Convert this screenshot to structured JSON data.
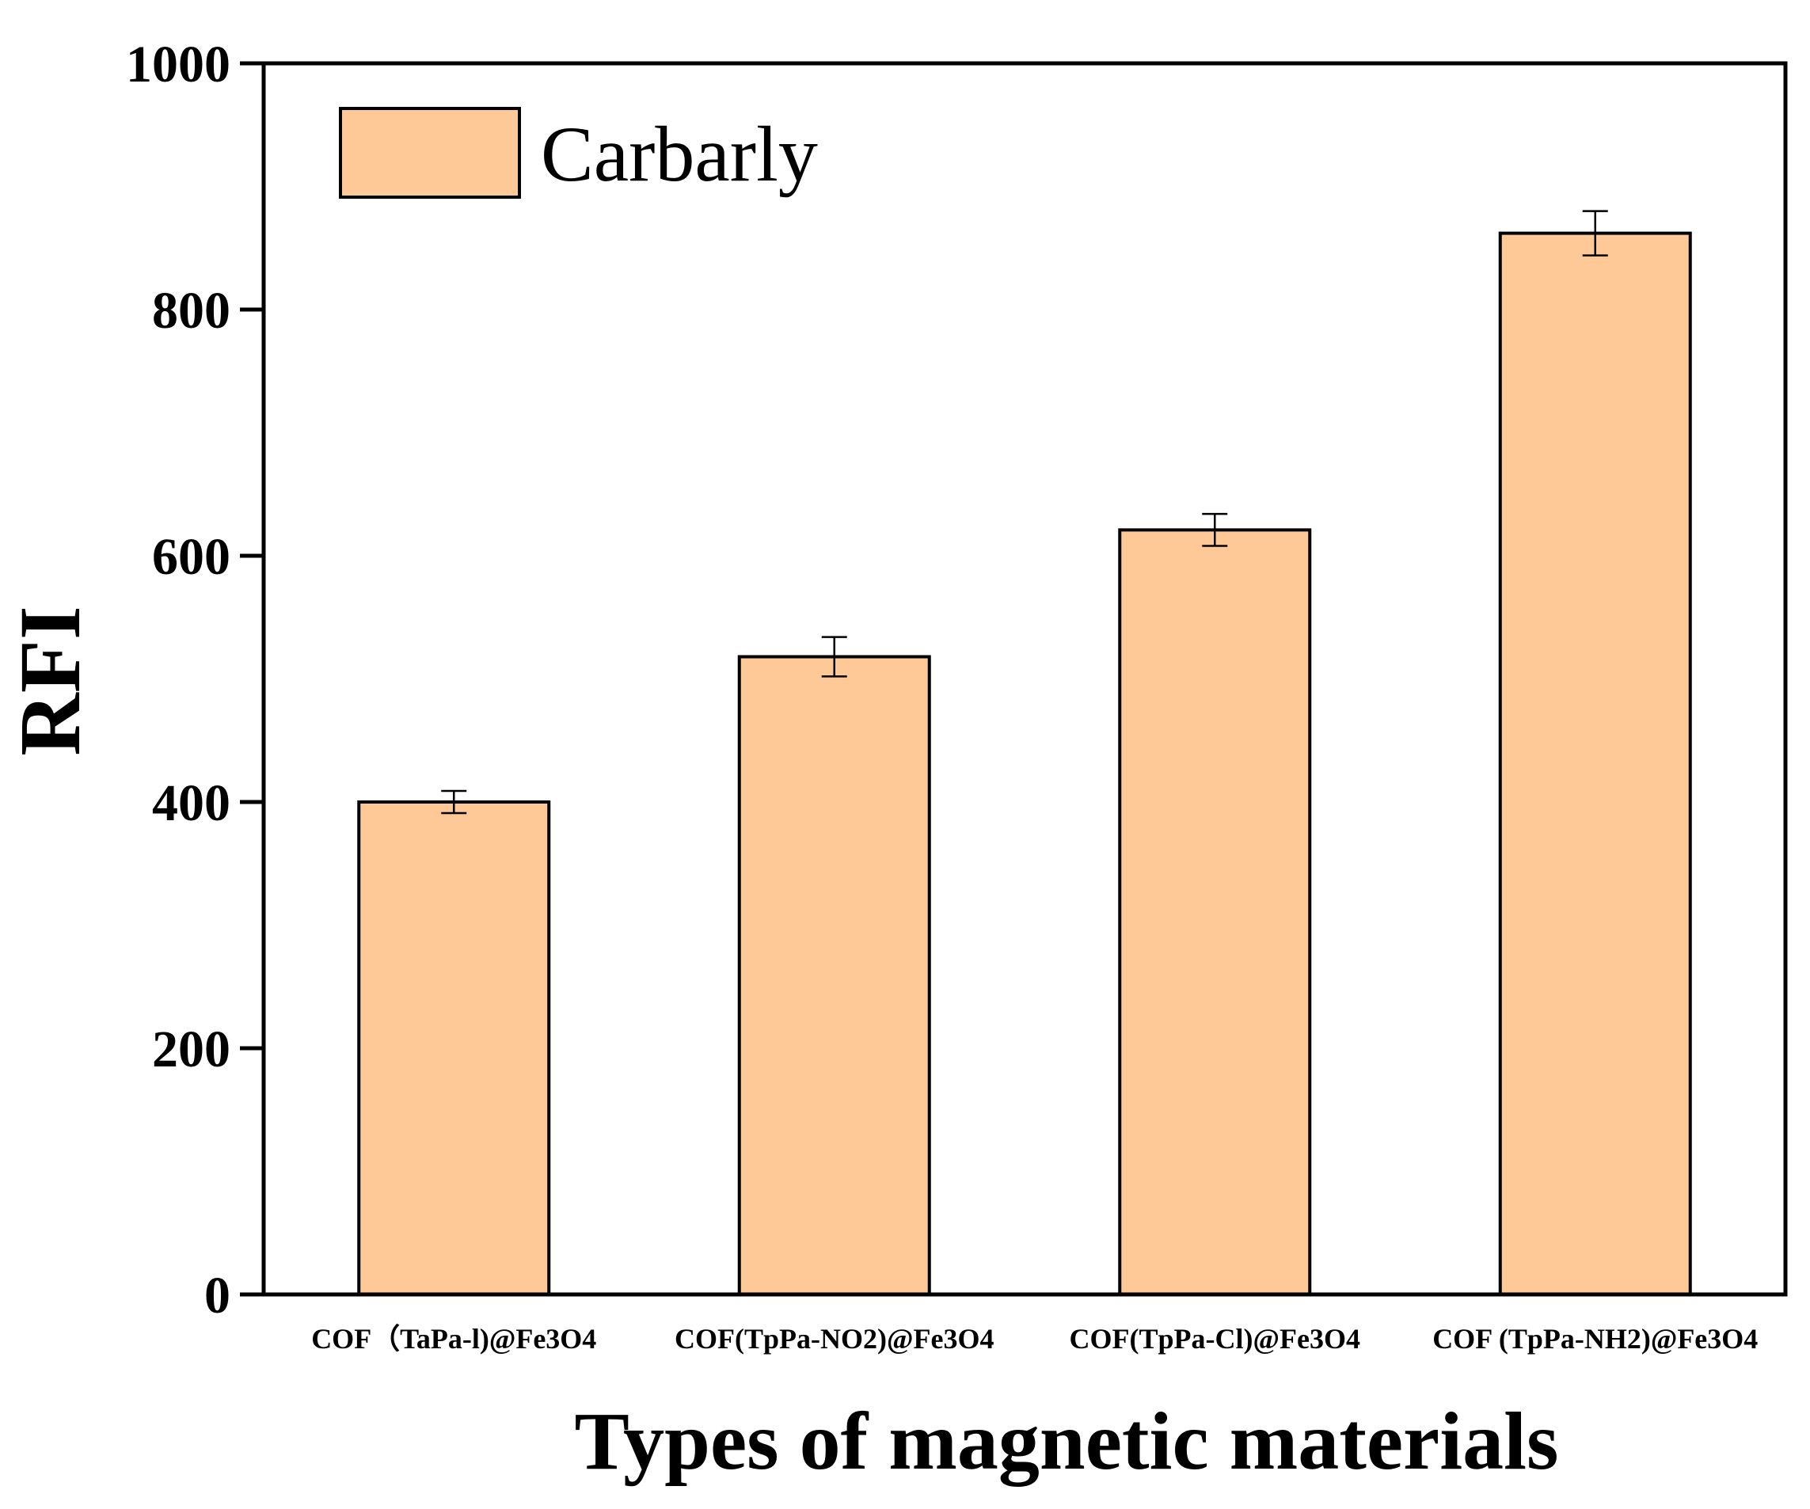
{
  "chart_data": {
    "type": "bar",
    "categories": [
      "COF（TaPa-l)@Fe3O4",
      "COF(TpPa-NO2)@Fe3O4",
      "COF(TpPa-Cl)@Fe3O4",
      "COF (TpPa-NH2)@Fe3O4"
    ],
    "series": [
      {
        "name": "Carbarly",
        "values": [
          400,
          518,
          621,
          862
        ],
        "errors": [
          9,
          16,
          13,
          18
        ],
        "color": "#FFC897"
      }
    ],
    "xlabel": "Types of magnetic materials",
    "ylabel": "RFI",
    "ylim": [
      0,
      1000
    ],
    "yticks": [
      0,
      200,
      400,
      600,
      800,
      1000
    ],
    "grid": false,
    "legend_position": "top-left",
    "bar_edge_color": "#000000"
  }
}
